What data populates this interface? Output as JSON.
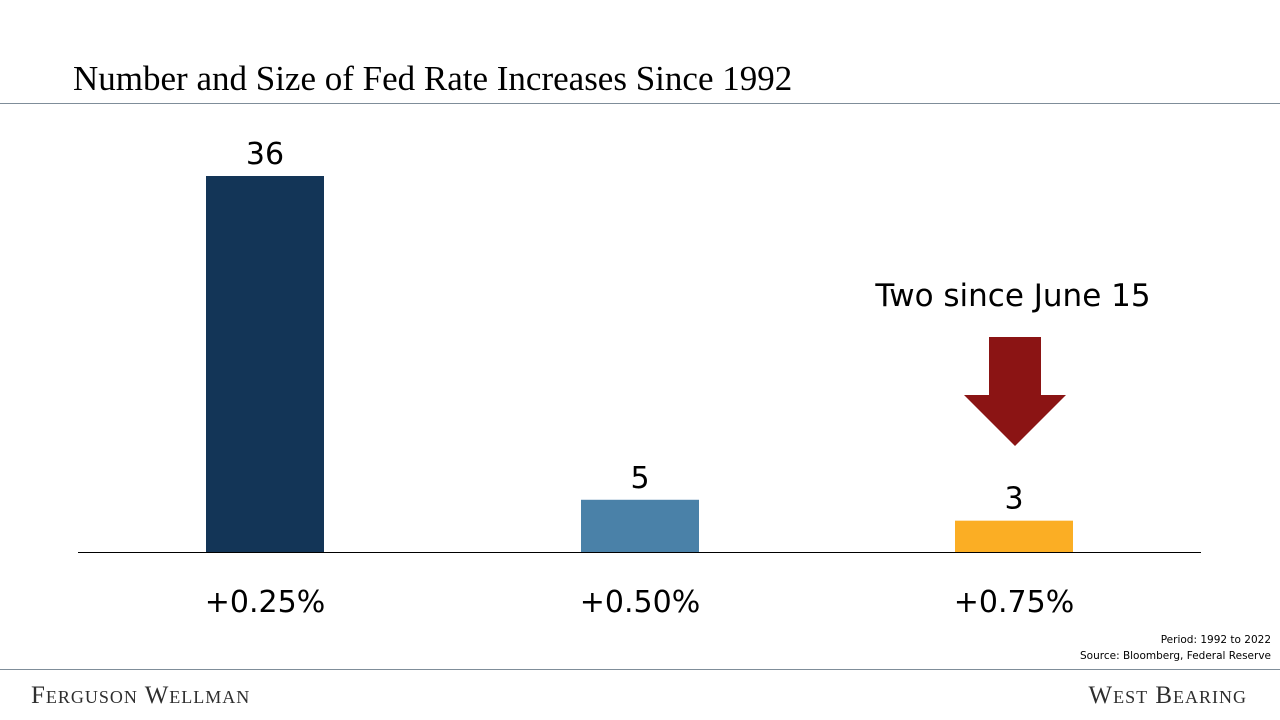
{
  "title": "Number and Size of Fed Rate Increases Since 1992",
  "chart_data": {
    "type": "bar",
    "categories": [
      "+0.25%",
      "+0.50%",
      "+0.75%"
    ],
    "values": [
      36,
      5,
      3
    ],
    "value_labels": [
      "36",
      "5",
      "3"
    ],
    "colors": [
      "#133557",
      "#4a81a8",
      "#fbae24"
    ],
    "ylim": [
      0,
      40
    ],
    "grid": false,
    "legend": "none",
    "annotation": {
      "text": "Two since June 15",
      "target_category": "+0.75%",
      "arrow_color": "#8b1414"
    }
  },
  "footnote": {
    "period": "Period: 1992 to 2022",
    "source": "Source: Bloomberg, Federal Reserve"
  },
  "footer": {
    "left_brand": "Ferguson Wellman",
    "right_brand": "West Bearing"
  }
}
